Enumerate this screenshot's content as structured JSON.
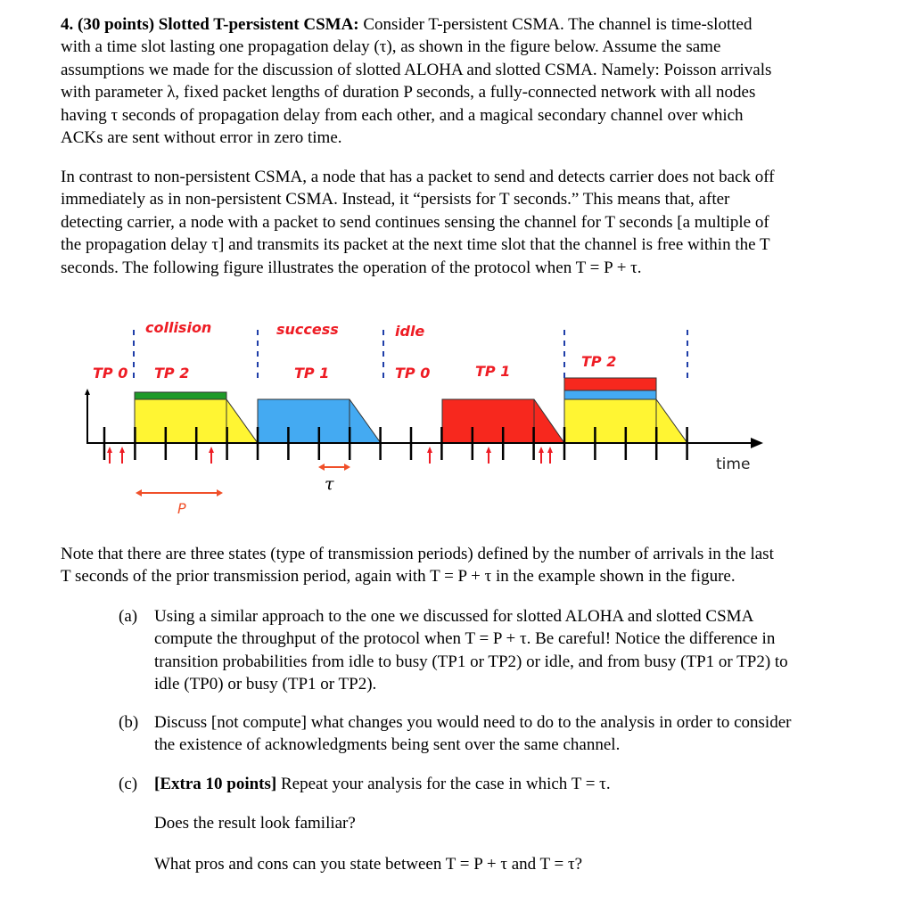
{
  "problem": {
    "heading": "4. (30 points) Slotted T-persistent CSMA:",
    "intro_lines": [
      " Consider T-persistent CSMA. The channel is time-slotted",
      "with a time slot lasting one propagation delay (τ), as shown in the figure below. Assume the same",
      "assumptions we made for the discussion of slotted ALOHA and slotted CSMA. Namely: Poisson arrivals",
      "with parameter λ, fixed packet lengths of duration P seconds, a fully-connected network with all nodes",
      "having τ seconds of propagation delay from each other, and a magical secondary channel over which",
      "ACKs are sent without error in zero time."
    ],
    "para2_lines": [
      "In contrast to non-persistent CSMA, a node that has a packet to send and detects carrier does not back off",
      "immediately as in non-persistent CSMA. Instead, it “persists for T seconds.” This means that, after",
      "detecting carrier, a node with a packet to send continues sensing the channel for T seconds [a multiple of",
      "the propagation delay τ] and transmits its packet at the next time slot that the channel is free within the T",
      "seconds. The following figure illustrates the operation of the protocol when T = P + τ."
    ],
    "note_lines": [
      "Note that there are three states  (type of transmission periods) defined by the number of arrivals in the last",
      "T seconds of the prior transmission period, again with T = P + τ in the example shown in the figure."
    ],
    "parts": [
      {
        "label": "(a)",
        "lines": [
          "Using a similar approach to the one we discussed for slotted ALOHA and slotted CSMA",
          "compute the throughput of the protocol when T = P + τ.  Be careful! Notice the difference in",
          "transition probabilities from idle to busy (TP1 or TP2) or idle, and from busy (TP1 or TP2) to",
          "idle (TP0) or busy (TP1 or TP2)."
        ]
      },
      {
        "label": "(b)",
        "lines": [
          "Discuss [not compute] what changes you would need to do to the analysis in order to consider",
          "the existence of acknowledgments being sent over the same channel."
        ]
      },
      {
        "label": "(c)",
        "bold": "[Extra 10 points]",
        "lines": [
          " Repeat your analysis for the case in which T = τ."
        ]
      }
    ],
    "followups": [
      "Does the result look familiar?",
      "What pros and cons can you state between T = P + τ and T = τ?"
    ]
  },
  "figure": {
    "state_labels": [
      "collision",
      "success",
      "idle"
    ],
    "tp_labels": [
      "TP 0",
      "TP 2",
      "TP 1",
      "TP 0",
      "TP 1",
      "TP 2"
    ],
    "time_label": "time",
    "tau_label": "τ",
    "p_label": "P",
    "colors": {
      "label_red": "#ee1c24",
      "yellow": "#fff533",
      "green": "#1e9a28",
      "blue": "#44aaf2",
      "red": "#f7281e",
      "dash_blue": "#1f3ea8",
      "arrow_red": "#f0502a"
    }
  }
}
